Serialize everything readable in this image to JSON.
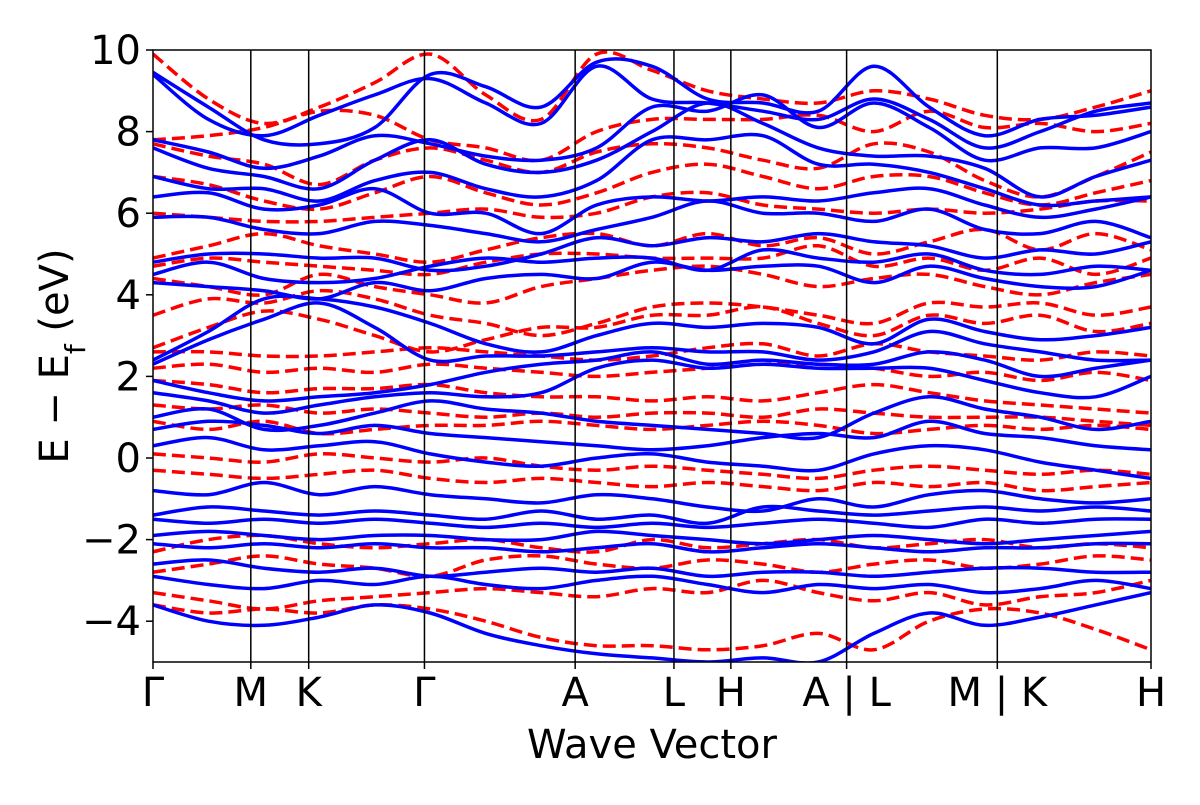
{
  "chart_data": {
    "type": "line",
    "title": "",
    "xlabel": "Wave Vector",
    "ylabel": "E − E",
    "ylabel_sub": "f",
    "ylabel_unit": " (eV)",
    "ylim": [
      -5,
      10
    ],
    "yticks": [
      {
        "value": 10,
        "label": "10"
      },
      {
        "value": 8,
        "label": "8"
      },
      {
        "value": 6,
        "label": "6"
      },
      {
        "value": 4,
        "label": "4"
      },
      {
        "value": 2,
        "label": "2"
      },
      {
        "value": 0,
        "label": "0"
      },
      {
        "value": -2,
        "label": "−2"
      },
      {
        "value": -4,
        "label": "−4"
      }
    ],
    "xlim": [
      0,
      100
    ],
    "kpoints": [
      {
        "x": 0,
        "label": "Γ"
      },
      {
        "x": 9.8,
        "label": "M"
      },
      {
        "x": 15.6,
        "label": "K"
      },
      {
        "x": 27.2,
        "label": "Γ"
      },
      {
        "x": 42.3,
        "label": "A"
      },
      {
        "x": 52.2,
        "label": "L"
      },
      {
        "x": 57.9,
        "label": "H"
      },
      {
        "x": 69.5,
        "label": "A | L"
      },
      {
        "x": 84.6,
        "label": "M | K"
      },
      {
        "x": 100,
        "label": "H"
      }
    ],
    "grid": false,
    "legend": "none",
    "series_style": [
      {
        "key": "solid",
        "color": "#0000ff",
        "dash": "none"
      },
      {
        "key": "dashed",
        "color": "#ff0000",
        "dash": "dashed"
      }
    ],
    "solid_bands": [
      [
        9.45,
        8.6,
        7.8,
        7.7,
        8.1,
        9.4,
        9.1,
        8.6,
        9.7,
        9.6,
        8.8,
        8.7,
        8.5,
        9.6,
        8.6,
        7.9,
        8.3,
        8.4,
        8.6
      ],
      [
        9.4,
        8.3,
        7.9,
        8.4,
        8.9,
        9.3,
        8.7,
        8.2,
        9.6,
        8.8,
        8.7,
        8.5,
        8.3,
        8.8,
        8.3,
        7.6,
        8.0,
        8.5,
        8.7
      ],
      [
        7.8,
        7.5,
        7.1,
        7.4,
        7.9,
        7.7,
        7.4,
        7.3,
        7.6,
        8.6,
        8.5,
        8.9,
        8.1,
        8.7,
        8.1,
        7.3,
        7.6,
        7.6,
        8.0
      ],
      [
        7.6,
        7.1,
        6.9,
        6.6,
        7.3,
        7.8,
        7.2,
        7.0,
        7.3,
        8.0,
        8.7,
        8.2,
        7.6,
        7.4,
        7.4,
        7.1,
        6.4,
        6.9,
        7.3
      ],
      [
        6.9,
        6.6,
        6.6,
        6.3,
        6.8,
        7.0,
        6.6,
        6.4,
        6.8,
        7.8,
        7.8,
        7.9,
        7.2,
        7.2,
        7.0,
        6.6,
        6.2,
        6.3,
        6.4
      ],
      [
        6.4,
        6.5,
        6.1,
        6.2,
        6.6,
        6.0,
        6.0,
        5.5,
        6.2,
        6.4,
        6.3,
        6.4,
        6.3,
        6.5,
        6.6,
        6.2,
        5.9,
        6.1,
        6.4
      ],
      [
        5.9,
        5.9,
        5.6,
        5.5,
        5.8,
        5.7,
        5.5,
        5.3,
        5.6,
        5.9,
        6.3,
        6.0,
        6.0,
        5.8,
        6.1,
        5.6,
        5.5,
        5.8,
        5.4
      ],
      [
        4.8,
        5.0,
        5.0,
        4.9,
        4.9,
        4.6,
        4.7,
        5.0,
        5.4,
        5.2,
        5.4,
        5.3,
        5.5,
        5.3,
        5.2,
        4.9,
        5.1,
        5.0,
        5.3
      ],
      [
        4.5,
        4.8,
        4.4,
        4.3,
        4.4,
        4.7,
        4.9,
        4.8,
        4.9,
        4.9,
        4.6,
        5.1,
        4.9,
        4.8,
        5.0,
        4.6,
        4.5,
        4.7,
        4.6
      ],
      [
        4.3,
        4.2,
        4.1,
        3.9,
        4.3,
        4.1,
        4.4,
        4.5,
        4.4,
        4.8,
        4.6,
        4.7,
        4.7,
        4.3,
        4.7,
        4.4,
        4.2,
        4.2,
        4.6
      ],
      [
        2.4,
        3.1,
        3.9,
        3.9,
        3.7,
        3.3,
        2.8,
        2.6,
        3.0,
        3.3,
        3.2,
        3.3,
        3.2,
        2.8,
        3.4,
        3.1,
        2.9,
        3.0,
        3.2
      ],
      [
        2.3,
        2.9,
        3.4,
        3.8,
        3.2,
        2.4,
        2.5,
        2.5,
        2.6,
        2.7,
        2.6,
        2.6,
        2.4,
        2.6,
        3.1,
        2.8,
        2.6,
        2.4,
        2.4
      ],
      [
        1.9,
        1.6,
        1.4,
        1.5,
        1.6,
        1.8,
        2.1,
        2.3,
        2.4,
        2.6,
        2.3,
        2.4,
        2.3,
        2.3,
        2.6,
        2.4,
        2.0,
        2.2,
        2.4
      ],
      [
        1.6,
        1.4,
        1.1,
        1.3,
        1.5,
        1.6,
        1.5,
        1.6,
        2.2,
        2.4,
        2.2,
        2.3,
        2.2,
        2.2,
        2.2,
        1.9,
        1.6,
        1.5,
        2.0
      ],
      [
        1.0,
        1.2,
        0.7,
        0.8,
        1.1,
        1.4,
        1.2,
        1.1,
        0.9,
        0.8,
        0.7,
        0.6,
        0.5,
        1.1,
        1.5,
        1.2,
        1.0,
        0.7,
        0.9
      ],
      [
        0.7,
        0.9,
        0.8,
        0.6,
        0.8,
        0.6,
        0.5,
        0.4,
        0.3,
        0.2,
        0.3,
        0.5,
        0.6,
        0.5,
        0.9,
        0.6,
        0.5,
        0.3,
        0.2
      ],
      [
        0.3,
        0.5,
        0.2,
        0.3,
        0.4,
        0.1,
        -0.1,
        -0.2,
        0.0,
        0.1,
        -0.1,
        -0.2,
        -0.3,
        0.1,
        0.3,
        0.2,
        -0.1,
        -0.3,
        -0.5
      ],
      [
        -0.8,
        -0.9,
        -0.6,
        -0.9,
        -0.7,
        -0.9,
        -1.0,
        -1.1,
        -0.9,
        -1.0,
        -1.2,
        -1.3,
        -1.0,
        -1.2,
        -0.9,
        -0.8,
        -1.0,
        -1.1,
        -1.0
      ],
      [
        -1.4,
        -1.2,
        -1.3,
        -1.4,
        -1.3,
        -1.4,
        -1.5,
        -1.3,
        -1.5,
        -1.4,
        -1.6,
        -1.2,
        -1.3,
        -1.4,
        -1.3,
        -1.2,
        -1.3,
        -1.2,
        -1.3
      ],
      [
        -1.5,
        -1.6,
        -1.5,
        -1.6,
        -1.5,
        -1.6,
        -1.7,
        -1.6,
        -1.7,
        -1.6,
        -1.7,
        -1.6,
        -1.5,
        -1.6,
        -1.7,
        -1.5,
        -1.6,
        -1.5,
        -1.5
      ],
      [
        -1.9,
        -1.8,
        -1.9,
        -2.0,
        -1.9,
        -1.9,
        -2.0,
        -2.0,
        -1.8,
        -1.9,
        -2.0,
        -2.1,
        -2.0,
        -1.9,
        -2.0,
        -2.1,
        -2.0,
        -1.9,
        -1.8
      ],
      [
        -2.1,
        -2.2,
        -2.1,
        -2.2,
        -2.1,
        -2.2,
        -2.2,
        -2.3,
        -2.2,
        -2.1,
        -2.3,
        -2.2,
        -2.1,
        -2.2,
        -2.3,
        -2.2,
        -2.2,
        -2.1,
        -2.1
      ],
      [
        -2.6,
        -2.5,
        -2.7,
        -2.8,
        -2.7,
        -2.9,
        -2.8,
        -2.7,
        -2.8,
        -2.7,
        -2.9,
        -2.8,
        -2.8,
        -2.9,
        -2.8,
        -2.7,
        -2.7,
        -2.8,
        -2.8
      ],
      [
        -2.9,
        -3.1,
        -3.2,
        -3.0,
        -3.1,
        -2.9,
        -3.1,
        -3.2,
        -3.0,
        -2.9,
        -3.1,
        -3.3,
        -3.1,
        -3.2,
        -3.1,
        -3.3,
        -3.2,
        -3.0,
        -3.2
      ],
      [
        -3.6,
        -4.0,
        -4.1,
        -3.9,
        -3.6,
        -3.8,
        -4.3,
        -4.6,
        -4.8,
        -4.9,
        -5.0,
        -4.9,
        -5.0,
        -4.3,
        -3.8,
        -4.1,
        -3.9,
        -3.6,
        -3.3
      ]
    ],
    "dashed_bands": [
      [
        9.9,
        8.8,
        8.2,
        8.6,
        9.2,
        9.9,
        8.9,
        8.3,
        9.9,
        9.5,
        9.0,
        8.8,
        8.7,
        9.0,
        8.8,
        8.4,
        8.3,
        8.6,
        9.0
      ],
      [
        7.8,
        7.9,
        8.1,
        8.5,
        8.4,
        7.8,
        7.6,
        7.3,
        8.0,
        8.3,
        8.3,
        8.3,
        8.4,
        8.0,
        8.5,
        8.1,
        8.2,
        8.0,
        8.2
      ],
      [
        7.7,
        7.4,
        7.2,
        6.7,
        7.3,
        7.6,
        7.3,
        7.0,
        7.5,
        7.7,
        7.6,
        7.3,
        7.1,
        7.7,
        7.5,
        6.8,
        6.4,
        6.9,
        7.5
      ],
      [
        6.9,
        6.7,
        6.3,
        6.1,
        6.5,
        6.9,
        6.5,
        6.2,
        6.5,
        7.0,
        7.2,
        6.9,
        6.6,
        6.9,
        6.9,
        6.5,
        6.2,
        6.5,
        6.8
      ],
      [
        6.0,
        5.9,
        5.8,
        5.8,
        5.9,
        6.0,
        6.1,
        5.9,
        6.0,
        6.4,
        6.5,
        6.2,
        6.1,
        6.0,
        6.1,
        6.0,
        6.1,
        6.3,
        6.3
      ],
      [
        4.9,
        5.2,
        5.5,
        5.2,
        5.0,
        4.8,
        5.1,
        5.4,
        5.5,
        5.2,
        5.5,
        5.2,
        5.4,
        5.0,
        5.3,
        5.6,
        5.1,
        5.5,
        5.1
      ],
      [
        4.7,
        4.9,
        4.8,
        4.7,
        4.6,
        4.5,
        4.8,
        5.0,
        5.0,
        4.9,
        4.9,
        4.9,
        5.2,
        4.7,
        4.9,
        4.6,
        4.9,
        4.5,
        4.9
      ],
      [
        4.4,
        4.2,
        4.0,
        4.5,
        4.2,
        4.0,
        3.8,
        4.2,
        4.4,
        4.6,
        4.7,
        4.5,
        4.2,
        4.4,
        4.5,
        4.2,
        4.0,
        4.3,
        4.5
      ],
      [
        3.5,
        3.9,
        3.8,
        4.1,
        3.9,
        3.5,
        3.3,
        3.0,
        3.3,
        3.7,
        3.8,
        3.7,
        3.5,
        3.3,
        3.8,
        3.7,
        3.8,
        3.5,
        3.7
      ],
      [
        2.7,
        3.2,
        3.6,
        3.4,
        3.0,
        2.6,
        2.9,
        3.2,
        3.2,
        3.5,
        3.5,
        3.7,
        3.3,
        3.0,
        3.5,
        3.3,
        3.5,
        3.1,
        3.3
      ],
      [
        2.6,
        2.6,
        2.5,
        2.5,
        2.6,
        2.7,
        2.6,
        2.5,
        2.4,
        2.5,
        2.7,
        2.8,
        2.5,
        2.8,
        2.6,
        2.5,
        2.4,
        2.6,
        2.5
      ],
      [
        2.2,
        2.3,
        2.1,
        2.2,
        2.1,
        2.3,
        2.2,
        2.1,
        2.0,
        2.1,
        2.2,
        2.3,
        2.3,
        2.2,
        2.0,
        2.1,
        1.9,
        2.1,
        1.9
      ],
      [
        1.9,
        1.8,
        1.6,
        1.7,
        1.7,
        1.8,
        1.6,
        1.5,
        1.5,
        1.4,
        1.5,
        1.4,
        1.6,
        1.8,
        1.6,
        1.4,
        1.3,
        1.2,
        1.1
      ],
      [
        1.3,
        1.2,
        1.3,
        1.1,
        1.2,
        1.1,
        1.0,
        1.1,
        1.0,
        1.1,
        1.1,
        1.0,
        1.2,
        1.1,
        1.0,
        1.0,
        1.0,
        0.9,
        0.8
      ],
      [
        0.9,
        0.7,
        0.9,
        0.6,
        0.7,
        0.8,
        0.8,
        0.9,
        0.8,
        0.7,
        0.8,
        0.9,
        0.8,
        0.6,
        0.7,
        0.8,
        0.7,
        0.8,
        0.7
      ],
      [
        0.1,
        0.0,
        -0.1,
        0.1,
        0.0,
        -0.1,
        0.0,
        -0.2,
        -0.3,
        -0.2,
        -0.3,
        -0.4,
        -0.5,
        -0.3,
        -0.2,
        -0.3,
        -0.4,
        -0.3,
        -0.4
      ],
      [
        -0.3,
        -0.4,
        -0.5,
        -0.4,
        -0.3,
        -0.5,
        -0.6,
        -0.5,
        -0.6,
        -0.7,
        -0.6,
        -0.7,
        -0.8,
        -0.6,
        -0.7,
        -0.6,
        -0.8,
        -0.7,
        -0.6
      ],
      [
        -2.3,
        -2.0,
        -1.9,
        -2.1,
        -2.2,
        -2.1,
        -2.0,
        -2.2,
        -2.3,
        -2.0,
        -2.2,
        -2.1,
        -2.0,
        -2.2,
        -2.1,
        -2.0,
        -2.2,
        -2.1,
        -2.2
      ],
      [
        -2.8,
        -2.6,
        -2.4,
        -2.6,
        -2.7,
        -2.9,
        -2.5,
        -2.4,
        -2.6,
        -2.7,
        -2.5,
        -2.6,
        -2.8,
        -2.6,
        -2.5,
        -2.7,
        -2.6,
        -2.4,
        -2.5
      ],
      [
        -3.3,
        -3.5,
        -3.7,
        -3.5,
        -3.4,
        -3.3,
        -3.2,
        -3.3,
        -3.4,
        -3.2,
        -3.3,
        -3.0,
        -3.3,
        -3.5,
        -3.3,
        -3.6,
        -3.4,
        -3.3,
        -3.0
      ],
      [
        -3.6,
        -3.8,
        -3.7,
        -3.8,
        -3.6,
        -3.7,
        -4.0,
        -4.4,
        -4.6,
        -4.6,
        -4.7,
        -4.6,
        -4.3,
        -4.7,
        -4.0,
        -3.7,
        -3.8,
        -4.2,
        -4.7
      ]
    ]
  }
}
